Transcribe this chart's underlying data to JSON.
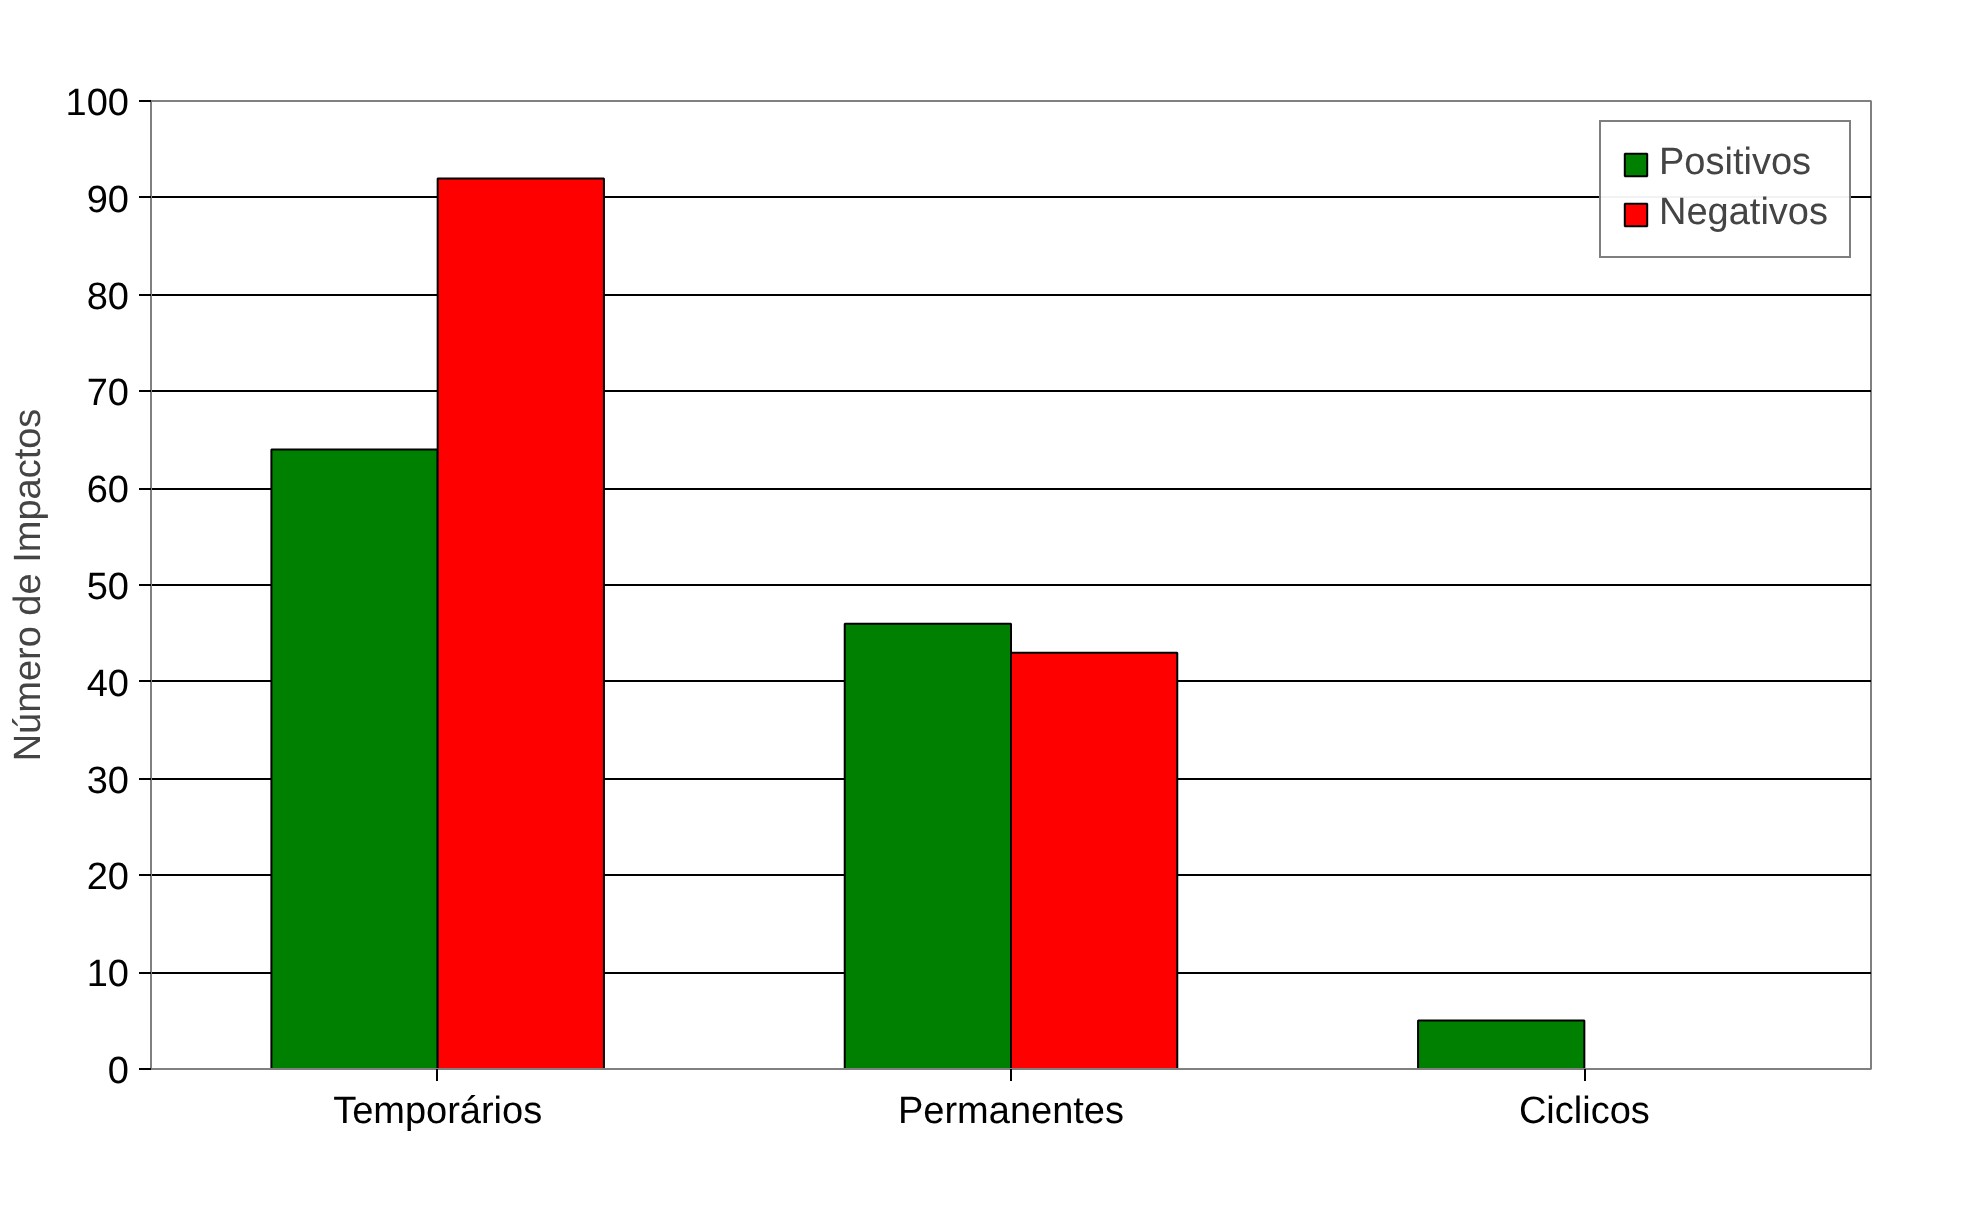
{
  "chart_data": {
    "type": "bar",
    "ylabel": "Número de Impactos",
    "categories": [
      "Temporários",
      "Permanentes",
      "Ciclicos"
    ],
    "series": [
      {
        "name": "Positivos",
        "color": "#008000",
        "values": [
          64,
          46,
          5
        ]
      },
      {
        "name": "Negativos",
        "color": "#ff0000",
        "values": [
          92,
          43,
          0
        ]
      }
    ],
    "ylim": [
      0,
      100
    ],
    "yticks": [
      0,
      10,
      20,
      30,
      40,
      50,
      60,
      70,
      80,
      90,
      100
    ],
    "grid": "y",
    "legend": "top right"
  }
}
